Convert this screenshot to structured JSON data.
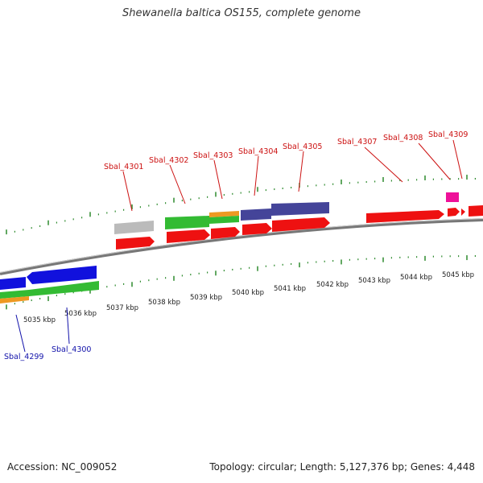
{
  "title": "Shewanella baltica OS155, complete genome",
  "footer": {
    "accession": "Accession: NC_009052",
    "summary": "Topology: circular; Length: 5,127,376 bp; Genes: 4,448"
  },
  "colors": {
    "backbone": "#808080",
    "tick": "#2e8b2e",
    "forward_label": "#cc1111",
    "reverse_label": "#1111aa",
    "cds": "#ee1111",
    "gene_gray": "#bbbbbb",
    "gene_green": "#33bb33",
    "gene_orange": "#ee9922",
    "gene_purple": "#444499",
    "gene_magenta": "#ee1199",
    "gene_blue": "#1111dd"
  },
  "kbp_labels": [
    "5035 kbp",
    "5036 kbp",
    "5037 kbp",
    "5038 kbp",
    "5039 kbp",
    "5040 kbp",
    "5041 kbp",
    "5042 kbp",
    "5043 kbp",
    "5044 kbp",
    "5045 kbp"
  ],
  "gene_labels_forward": [
    "Sbal_4301",
    "Sbal_4302",
    "Sbal_4303",
    "Sbal_4304",
    "Sbal_4305",
    "Sbal_4307",
    "Sbal_4308",
    "Sbal_4309"
  ],
  "gene_labels_reverse": [
    "Sbal_4299",
    "Sbal_4300"
  ]
}
